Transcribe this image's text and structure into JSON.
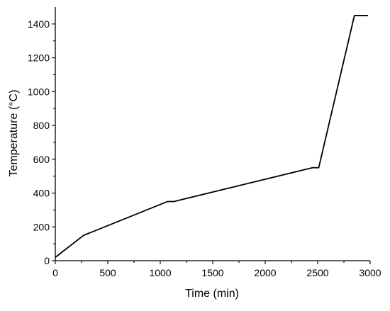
{
  "chart_data": {
    "type": "line",
    "title": "",
    "xlabel": "Time (min)",
    "ylabel": "Temperature (°C)",
    "xlim": [
      0,
      3000
    ],
    "ylim": [
      0,
      1500
    ],
    "xticks": [
      0,
      500,
      1000,
      1500,
      2000,
      2500,
      3000
    ],
    "xtick_labels": [
      "0",
      "500",
      "1000",
      "1500",
      "2000",
      "2500",
      "3000"
    ],
    "yticks": [
      0,
      200,
      400,
      600,
      800,
      1000,
      1200,
      1400
    ],
    "ytick_labels": [
      "0",
      "200",
      "400",
      "600",
      "800",
      "1000",
      "1200",
      "1400"
    ],
    "grid": false,
    "legend": "none",
    "series": [
      {
        "color": "#000000",
        "x": [
          0,
          270,
          1070,
          1130,
          2450,
          2510,
          2850,
          2980
        ],
        "y": [
          20,
          150,
          350,
          350,
          550,
          550,
          1450,
          1450
        ]
      }
    ]
  }
}
